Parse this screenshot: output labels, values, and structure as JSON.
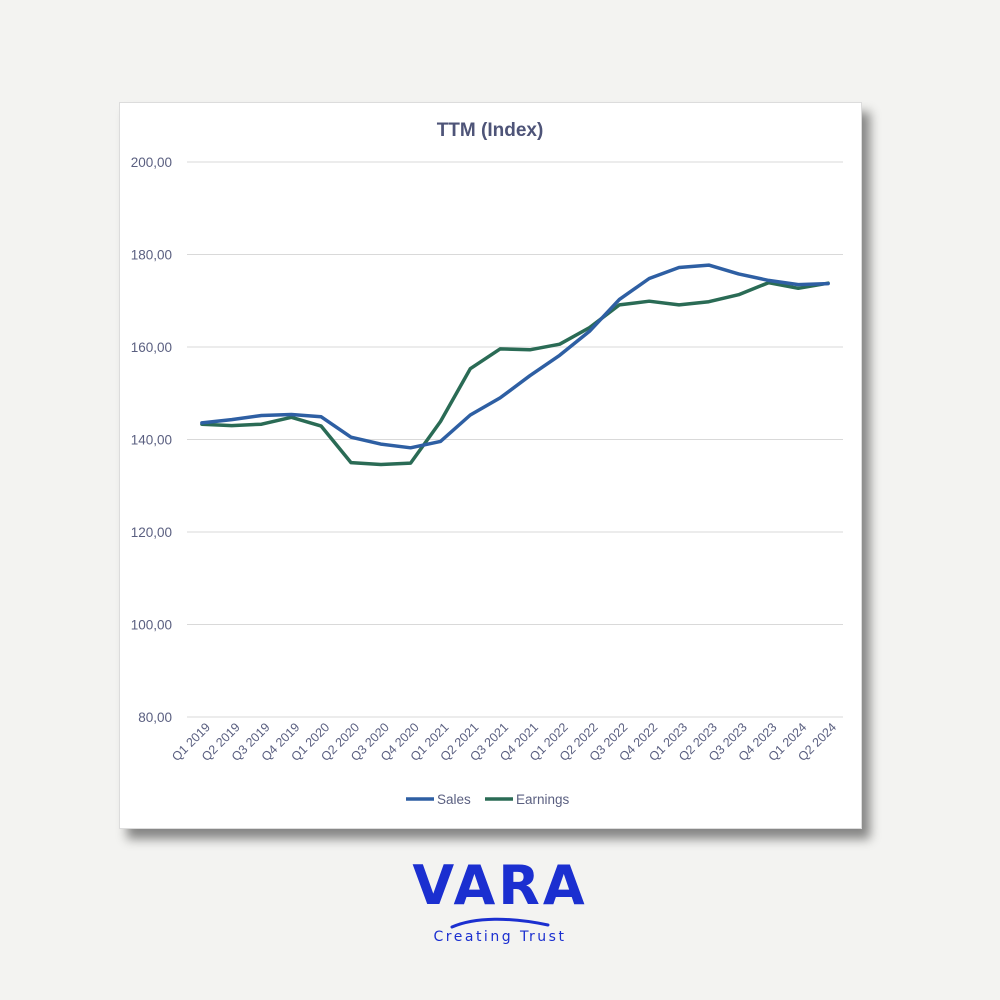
{
  "colors": {
    "sales": "#2e5fa3",
    "earnings": "#2a6b55",
    "brand": "#1b2fd0"
  },
  "chart_data": {
    "type": "line",
    "title": "TTM (Index)",
    "xlabel": "",
    "ylabel": "",
    "ylim": [
      80,
      200
    ],
    "y_ticks": [
      "80,00",
      "100,00",
      "120,00",
      "140,00",
      "160,00",
      "180,00",
      "200,00"
    ],
    "grid": true,
    "legend_position": "bottom",
    "categories": [
      "Q1 2019",
      "Q2 2019",
      "Q3 2019",
      "Q4 2019",
      "Q1 2020",
      "Q2 2020",
      "Q3 2020",
      "Q4 2020",
      "Q1 2021",
      "Q2 2021",
      "Q3 2021",
      "Q4 2021",
      "Q1 2022",
      "Q2 2022",
      "Q3 2022",
      "Q4 2022",
      "Q1 2023",
      "Q2 2023",
      "Q3 2023",
      "Q4 2023",
      "Q1 2024",
      "Q2 2024"
    ],
    "series": [
      {
        "name": "Sales",
        "values": [
          143.6,
          144.3,
          145.2,
          145.4,
          144.9,
          140.5,
          139.0,
          138.2,
          139.6,
          145.3,
          149.0,
          153.8,
          158.2,
          163.4,
          170.3,
          174.8,
          177.2,
          177.7,
          175.8,
          174.4,
          173.5,
          173.7
        ]
      },
      {
        "name": "Earnings",
        "values": [
          143.3,
          143.0,
          143.3,
          144.8,
          142.9,
          135.0,
          134.6,
          134.9,
          143.9,
          155.3,
          159.6,
          159.4,
          160.6,
          164.2,
          169.1,
          169.9,
          169.1,
          169.8,
          171.3,
          173.9,
          172.7,
          173.8
        ]
      }
    ]
  },
  "logo": {
    "wordmark": "VARA",
    "tagline": "Creating Trust"
  }
}
